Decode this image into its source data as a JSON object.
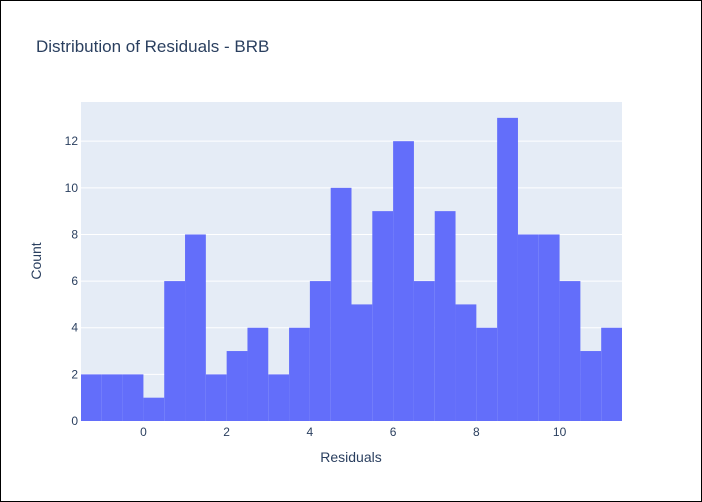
{
  "chart_data": {
    "type": "bar",
    "title": "Distribution of Residuals - BRB",
    "xlabel": "Residuals",
    "ylabel": "Count",
    "bin_width": 0.5,
    "x_range": [
      -1.5,
      11.5
    ],
    "ylim": [
      0,
      13.68
    ],
    "bins": [
      {
        "start": -1.5,
        "end": -1.0,
        "count": 2
      },
      {
        "start": -1.0,
        "end": -0.5,
        "count": 2
      },
      {
        "start": -0.5,
        "end": 0.0,
        "count": 2
      },
      {
        "start": 0.0,
        "end": 0.5,
        "count": 1
      },
      {
        "start": 0.5,
        "end": 1.0,
        "count": 6
      },
      {
        "start": 1.0,
        "end": 1.5,
        "count": 8
      },
      {
        "start": 1.5,
        "end": 2.0,
        "count": 2
      },
      {
        "start": 2.0,
        "end": 2.5,
        "count": 3
      },
      {
        "start": 2.5,
        "end": 3.0,
        "count": 4
      },
      {
        "start": 3.0,
        "end": 3.5,
        "count": 2
      },
      {
        "start": 3.5,
        "end": 4.0,
        "count": 4
      },
      {
        "start": 4.0,
        "end": 4.5,
        "count": 6
      },
      {
        "start": 4.5,
        "end": 5.0,
        "count": 10
      },
      {
        "start": 5.0,
        "end": 5.5,
        "count": 5
      },
      {
        "start": 5.5,
        "end": 6.0,
        "count": 9
      },
      {
        "start": 6.0,
        "end": 6.5,
        "count": 12
      },
      {
        "start": 6.5,
        "end": 7.0,
        "count": 6
      },
      {
        "start": 7.0,
        "end": 7.5,
        "count": 9
      },
      {
        "start": 7.5,
        "end": 8.0,
        "count": 5
      },
      {
        "start": 8.0,
        "end": 8.5,
        "count": 4
      },
      {
        "start": 8.5,
        "end": 9.0,
        "count": 13
      },
      {
        "start": 9.0,
        "end": 9.5,
        "count": 8
      },
      {
        "start": 9.5,
        "end": 10.0,
        "count": 8
      },
      {
        "start": 10.0,
        "end": 10.5,
        "count": 6
      },
      {
        "start": 10.5,
        "end": 11.0,
        "count": 3
      },
      {
        "start": 11.0,
        "end": 11.5,
        "count": 4
      }
    ],
    "x_ticks": [
      0,
      2,
      4,
      6,
      8,
      10
    ],
    "y_ticks": [
      0,
      2,
      4,
      6,
      8,
      10,
      12
    ],
    "grid": true,
    "legend": "none",
    "colors": {
      "bar": "#636efa",
      "plot_background": "#e5ecf6",
      "grid": "#ffffff",
      "text": "#2a3f5f"
    }
  }
}
